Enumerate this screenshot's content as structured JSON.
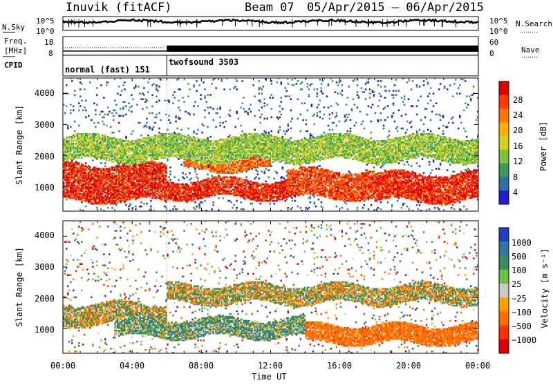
{
  "header": {
    "station": "Inuvik (fitACF)",
    "beam": "Beam 07",
    "dates": "05/Apr/2015 – 06/Apr/2015"
  },
  "sky_panel": {
    "left_label": "N.Sky",
    "right_label": "N.Search",
    "left_ticks": [
      "10^5",
      "10^0"
    ],
    "right_ticks": [
      "10^5",
      "10^0"
    ]
  },
  "freq_panel": {
    "left_label_line1": "Freq.",
    "left_label_line2": "[MHz]",
    "right_label": "Nave",
    "left_ticks": [
      "18",
      "8"
    ],
    "right_ticks": [
      "60",
      "0"
    ]
  },
  "cpid_panel": {
    "label": "CPID",
    "modes": [
      {
        "name": "normal (fast) 151",
        "start_hour": 0,
        "end_hour": 6
      },
      {
        "name": "twofsound 3503",
        "start_hour": 6,
        "end_hour": 24
      }
    ]
  },
  "axes": {
    "ylabel": "Slant Range [km]",
    "yticks": [
      "4000",
      "3000",
      "2000",
      "1000"
    ],
    "ylim": [
      200,
      4500
    ],
    "xlabel": "Time UT",
    "xticks": [
      "00:00",
      "04:00",
      "08:00",
      "12:00",
      "16:00",
      "20:00",
      "00:00"
    ],
    "xlim_hours": [
      0,
      24
    ]
  },
  "power_colorbar": {
    "title": "Power [dB]",
    "ticks": [
      "28",
      "24",
      "20",
      "16",
      "12",
      "8",
      "4"
    ],
    "colors": [
      "#e00000",
      "#ff3c00",
      "#ff7800",
      "#ffb000",
      "#d7d020",
      "#7cc040",
      "#3a9a5a",
      "#2f6fa5",
      "#2020d0"
    ]
  },
  "velocity_colorbar": {
    "title": "Velocity [m s⁻¹]",
    "ticks": [
      "1000",
      "500",
      "100",
      "25",
      "−25",
      "−100",
      "−500",
      "−1000"
    ],
    "colors": [
      "#2040c0",
      "#2f78a0",
      "#3a8a5a",
      "#6ac040",
      "#c8c8c8",
      "#ffa000",
      "#ff7000",
      "#ff3000",
      "#e00000"
    ]
  },
  "chart_data": [
    {
      "type": "heatmap",
      "title": "Power [dB]",
      "xlabel": "Time UT",
      "ylabel": "Slant Range [km]",
      "x_range_hours": [
        0,
        24
      ],
      "y_range_km": [
        200,
        4500
      ],
      "value_range": [
        0,
        30
      ],
      "bands": [
        {
          "time_hours": [
            0,
            6
          ],
          "range_km": [
            500,
            1700
          ],
          "power_db": 28
        },
        {
          "time_hours": [
            6,
            13
          ],
          "range_km": [
            600,
            1200
          ],
          "power_db": 28
        },
        {
          "time_hours": [
            7,
            12
          ],
          "range_km": [
            1500,
            2300
          ],
          "power_db": 24
        },
        {
          "time_hours": [
            13,
            18
          ],
          "range_km": [
            600,
            1500
          ],
          "power_db": 26
        },
        {
          "time_hours": [
            18,
            24
          ],
          "range_km": [
            500,
            1400
          ],
          "power_db": 28
        },
        {
          "time_hours": [
            0,
            24
          ],
          "range_km": [
            1800,
            2600
          ],
          "power_db": 12
        }
      ]
    },
    {
      "type": "heatmap",
      "title": "Velocity [m s⁻¹]",
      "xlabel": "Time UT",
      "ylabel": "Slant Range [km]",
      "x_range_hours": [
        0,
        24
      ],
      "y_range_km": [
        200,
        4500
      ],
      "value_range": [
        -1000,
        1000
      ],
      "bands": [
        {
          "time_hours": [
            0,
            6
          ],
          "range_km": [
            1100,
            1800
          ],
          "velocity_ms": 0
        },
        {
          "time_hours": [
            3,
            14
          ],
          "range_km": [
            700,
            1300
          ],
          "velocity_ms": 150
        },
        {
          "time_hours": [
            6,
            24
          ],
          "range_km": [
            1800,
            2400
          ],
          "velocity_ms": 0
        },
        {
          "time_hours": [
            14,
            24
          ],
          "range_km": [
            500,
            1100
          ],
          "velocity_ms": -300
        }
      ]
    }
  ]
}
